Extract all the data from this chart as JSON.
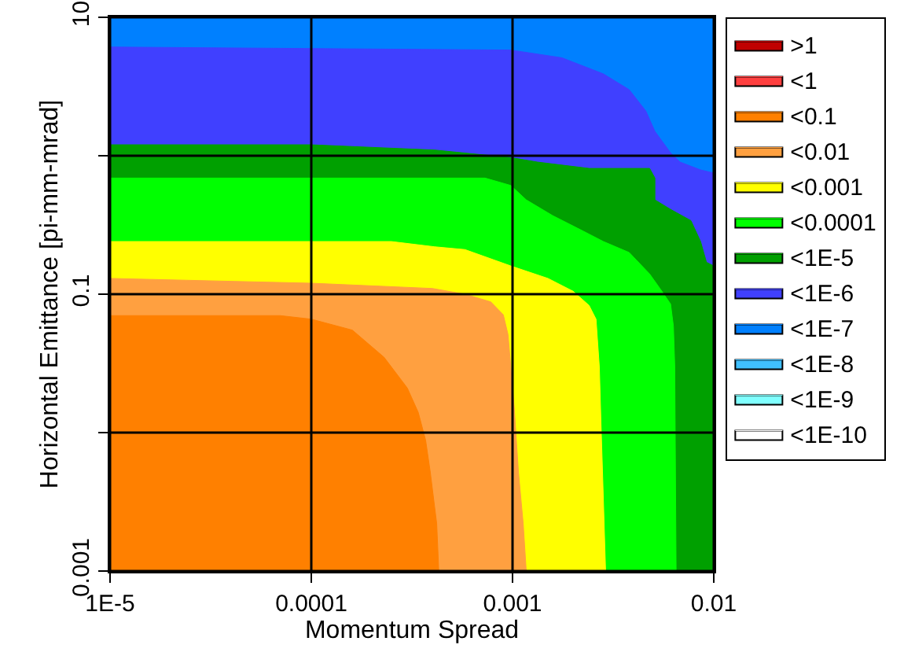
{
  "chart_data": {
    "type": "area",
    "xlabel": "Momentum Spread",
    "ylabel": "Horizontal Emittance [pi-mm-mrad]",
    "log": "xy",
    "grid": true,
    "legend": "right",
    "xlim": [
      1e-05,
      0.01
    ],
    "xticks": [
      {
        "value": 1e-05,
        "label": "1E-5"
      },
      0.0001,
      0.001,
      0.01
    ],
    "ylim": [
      0.001,
      10
    ],
    "yticks": [
      0.001,
      {
        "value": 0.01,
        "label": null
      },
      0.1,
      {
        "value": 1,
        "label": null
      },
      10
    ],
    "series": [
      {
        "name": ">1",
        "color": "#c00000"
      },
      {
        "name": "<1",
        "color": "#ff4040"
      },
      {
        "name": "<0.1",
        "color": "#ff8000",
        "x": [
          1e-05,
          7e-05,
          0.0001,
          0.00016,
          0.00023,
          0.0003,
          0.00034,
          0.00037,
          0.00039,
          0.00042,
          0.00043
        ],
        "values": [
          0.07,
          0.07,
          0.066,
          0.055,
          0.035,
          0.021,
          0.014,
          0.0088,
          0.0052,
          0.0022,
          0.001
        ]
      },
      {
        "name": "<0.01",
        "color": "#ffa040",
        "x": [
          1e-05,
          0.0001,
          0.0004,
          0.00058,
          0.00078,
          0.0009,
          0.00095,
          0.00098,
          0.00102,
          0.00107,
          0.00113,
          0.00117
        ],
        "values": [
          0.13,
          0.12,
          0.11,
          0.1,
          0.088,
          0.071,
          0.051,
          0.03,
          0.015,
          0.0052,
          0.0022,
          0.001
        ]
      },
      {
        "name": "<0.001",
        "color": "#ffff00",
        "x": [
          1e-05,
          0.00025,
          0.00041,
          0.00058,
          0.00098,
          0.0015,
          0.002,
          0.0024,
          0.0026,
          0.0027,
          0.00275,
          0.0028,
          0.0029
        ],
        "values": [
          0.24,
          0.24,
          0.22,
          0.21,
          0.16,
          0.13,
          0.105,
          0.083,
          0.066,
          0.03,
          0.012,
          0.0052,
          0.001
        ]
      },
      {
        "name": "<0.0001",
        "color": "#00ff00",
        "x": [
          1e-05,
          0.00073,
          0.00098,
          0.00117,
          0.00158,
          0.0021,
          0.00283,
          0.0038,
          0.0048,
          0.0054,
          0.0061,
          0.0063,
          0.0064,
          0.0065
        ],
        "values": [
          0.69,
          0.69,
          0.61,
          0.48,
          0.37,
          0.3,
          0.24,
          0.2,
          0.14,
          0.11,
          0.085,
          0.059,
          0.03,
          0.001
        ]
      },
      {
        "name": "<1E-5",
        "color": "#00a000",
        "x": [
          1e-05,
          0.0001,
          0.00041,
          0.00098,
          0.00133,
          0.0024,
          0.0048,
          0.0051,
          0.0051,
          0.0061,
          0.0077,
          0.0086,
          0.0092,
          0.01
        ],
        "values": [
          1.2,
          1.2,
          1.1,
          0.97,
          0.9,
          0.81,
          0.81,
          0.69,
          0.48,
          0.41,
          0.34,
          0.24,
          0.17,
          0.16
        ]
      },
      {
        "name": "<1E-6",
        "color": "#4040ff",
        "x": [
          1e-05,
          0.00098,
          0.00176,
          0.00283,
          0.0038,
          0.0046,
          0.0051,
          0.0061,
          0.0068,
          0.0086,
          0.01
        ],
        "values": [
          6.1,
          5.8,
          5.1,
          3.9,
          3.0,
          2.1,
          1.5,
          1.05,
          0.9,
          0.79,
          0.75
        ]
      },
      {
        "name": "<1E-7",
        "color": "#0080ff",
        "x": [
          1e-05,
          0.01
        ],
        "values": [
          10,
          10
        ]
      },
      {
        "name": "<1E-8",
        "color": "#40c0ff"
      },
      {
        "name": "<1E-9",
        "color": "#80ffff"
      },
      {
        "name": "<1E-10",
        "color": "#ffffff"
      }
    ]
  }
}
